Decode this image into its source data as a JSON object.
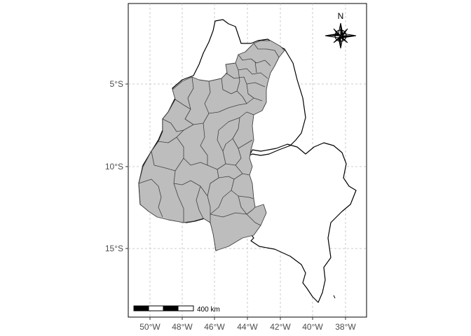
{
  "map": {
    "x_ticks": [
      {
        "value": -50,
        "label": "50°W"
      },
      {
        "value": -48,
        "label": "48°W"
      },
      {
        "value": -46,
        "label": "46°W"
      },
      {
        "value": -44,
        "label": "44°W"
      },
      {
        "value": -42,
        "label": "42°W"
      },
      {
        "value": -40,
        "label": "40°W"
      },
      {
        "value": -38,
        "label": "38°W"
      }
    ],
    "y_ticks": [
      {
        "value": -5,
        "label": "5°S"
      },
      {
        "value": -10,
        "label": "10°S"
      },
      {
        "value": -15,
        "label": "15°S"
      }
    ],
    "x_range": [
      -51.3,
      -37.0
    ],
    "y_range": [
      -19.0,
      -0.3
    ],
    "grid": true,
    "scale_bar": {
      "label": "400 km",
      "segments": 4
    },
    "north_arrow": {
      "label": "N",
      "icon": "compass-rose-icon"
    },
    "colors": {
      "region_fill": "#bdbdbd",
      "region_stroke": "#404040",
      "outline": "#000000",
      "grid": "#bfbfbf"
    }
  }
}
